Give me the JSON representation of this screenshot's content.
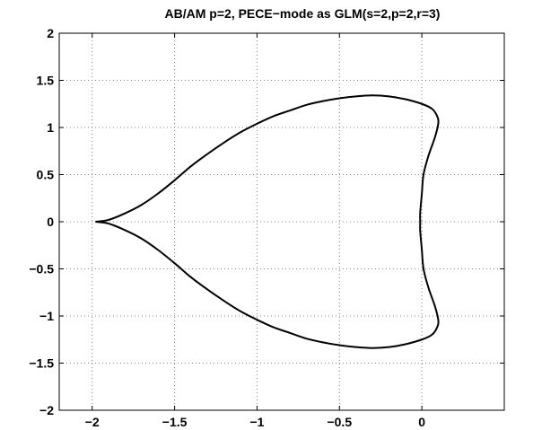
{
  "chart_data": {
    "type": "line",
    "title": "AB/AM p=2, PECE−mode as GLM(s=2,p=2,r=3)",
    "xlabel": "",
    "ylabel": "",
    "xlim": [
      -2.2,
      0.5
    ],
    "ylim": [
      -2,
      2
    ],
    "xticks": [
      -2,
      -1.5,
      -1,
      -0.5,
      0
    ],
    "xtick_labels": [
      "−2",
      "−1.5",
      "−1",
      "−0.5",
      "0"
    ],
    "yticks": [
      2,
      1.5,
      1,
      0.5,
      0,
      -0.5,
      -1,
      -1.5,
      -2
    ],
    "ytick_labels": [
      "2",
      "1.5",
      "1",
      "0.5",
      "0",
      "−0.5",
      "−1",
      "−1.5",
      "−2"
    ],
    "grid": true,
    "series": [
      {
        "color": "#000000",
        "x": [
          -1.98,
          -1.9,
          -1.8,
          -1.7,
          -1.6,
          -1.5,
          -1.4,
          -1.3,
          -1.2,
          -1.1,
          -1.0,
          -0.9,
          -0.8,
          -0.7,
          -0.6,
          -0.5,
          -0.4,
          -0.3,
          -0.2,
          -0.1,
          0.0,
          0.06,
          0.09,
          0.1,
          0.08,
          0.04,
          0.01,
          0.0,
          -0.01,
          -0.01,
          -0.01,
          0.0,
          0.01,
          0.04,
          0.08,
          0.1,
          0.09,
          0.06,
          0.0,
          -0.1,
          -0.2,
          -0.3,
          -0.4,
          -0.5,
          -0.6,
          -0.7,
          -0.8,
          -0.9,
          -1.0,
          -1.1,
          -1.2,
          -1.3,
          -1.4,
          -1.5,
          -1.6,
          -1.7,
          -1.8,
          -1.9,
          -1.98
        ],
        "y": [
          0.0,
          0.02,
          0.09,
          0.18,
          0.3,
          0.44,
          0.59,
          0.72,
          0.84,
          0.95,
          1.04,
          1.12,
          1.18,
          1.24,
          1.28,
          1.31,
          1.33,
          1.34,
          1.33,
          1.3,
          1.25,
          1.2,
          1.13,
          1.05,
          0.9,
          0.7,
          0.5,
          0.3,
          0.1,
          0.0,
          -0.1,
          -0.3,
          -0.5,
          -0.7,
          -0.9,
          -1.05,
          -1.13,
          -1.2,
          -1.25,
          -1.3,
          -1.33,
          -1.34,
          -1.33,
          -1.31,
          -1.28,
          -1.24,
          -1.18,
          -1.12,
          -1.04,
          -0.95,
          -0.84,
          -0.72,
          -0.59,
          -0.44,
          -0.3,
          -0.18,
          -0.09,
          -0.02,
          0.0
        ]
      }
    ]
  }
}
